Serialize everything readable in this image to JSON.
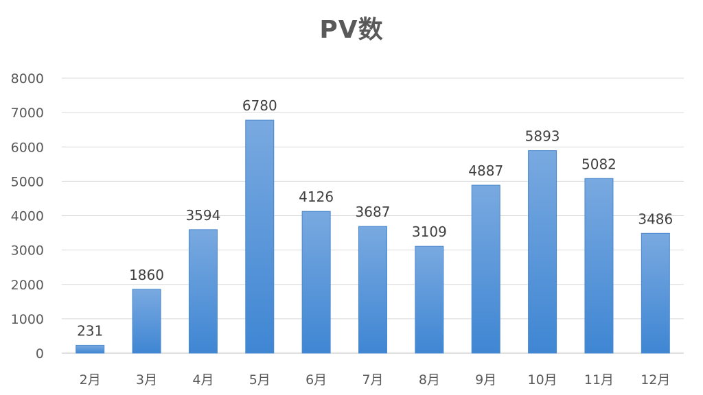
{
  "chart_data": {
    "type": "bar",
    "title": "PV数",
    "xlabel": "",
    "ylabel": "",
    "categories": [
      "2月",
      "3月",
      "4月",
      "5月",
      "6月",
      "7月",
      "8月",
      "9月",
      "10月",
      "11月",
      "12月"
    ],
    "values": [
      231,
      1860,
      3594,
      6780,
      4126,
      3687,
      3109,
      4887,
      5893,
      5082,
      3486
    ],
    "ylim": [
      0,
      8000
    ],
    "yticks": [
      0,
      1000,
      2000,
      3000,
      4000,
      5000,
      6000,
      7000,
      8000
    ],
    "grid": true,
    "legend": "none",
    "data_labels": true,
    "colors": {
      "bar_top": "#79a9e0",
      "bar_bottom": "#3f86d3",
      "bar_edge": "#4a88cc"
    }
  }
}
